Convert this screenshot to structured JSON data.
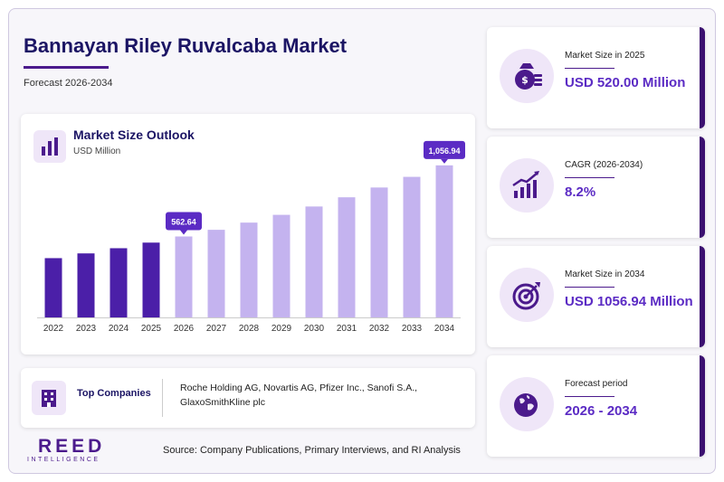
{
  "header": {
    "title": "Bannayan Riley Ruvalcaba Market",
    "subtitle": "Forecast 2026-2034"
  },
  "chart_card": {
    "title": "Market Size Outlook",
    "unit": "USD Million"
  },
  "chart_data": {
    "type": "bar",
    "title": "Market Size Outlook",
    "ylabel": "USD Million",
    "categories": [
      "2022",
      "2023",
      "2024",
      "2025",
      "2026",
      "2027",
      "2028",
      "2029",
      "2030",
      "2031",
      "2032",
      "2033",
      "2034"
    ],
    "values": [
      412,
      445,
      481,
      520,
      562.64,
      609,
      659,
      713,
      771,
      835,
      903,
      977,
      1056.94
    ],
    "ylim": [
      0,
      1100
    ],
    "grid": false,
    "annotations": [
      {
        "category": "2026",
        "label": "562.64"
      },
      {
        "category": "2034",
        "label": "1,056.94"
      }
    ],
    "colors": {
      "historical": "#4b1fa8",
      "forecast": "#c4b3ef",
      "callout": "#5b2bc4"
    }
  },
  "companies": {
    "label": "Top Companies",
    "list": "Roche Holding AG, Novartis AG, Pfizer Inc., Sanofi S.A., GlaxoSmithKline plc"
  },
  "logo": {
    "main": "REED",
    "sub": "INTELLIGENCE"
  },
  "source": "Source: Company Publications, Primary Interviews, and RI Analysis",
  "stats": [
    {
      "label": "Market Size in 2025",
      "value": "USD 520.00 Million",
      "icon": "money-bag-icon"
    },
    {
      "label": "CAGR (2026-2034)",
      "value": "8.2%",
      "icon": "growth-chart-icon"
    },
    {
      "label": "Market Size in 2034",
      "value": "USD 1056.94 Million",
      "icon": "target-icon"
    },
    {
      "label": "Forecast period",
      "value": "2026 - 2034",
      "icon": "globe-icon"
    }
  ]
}
